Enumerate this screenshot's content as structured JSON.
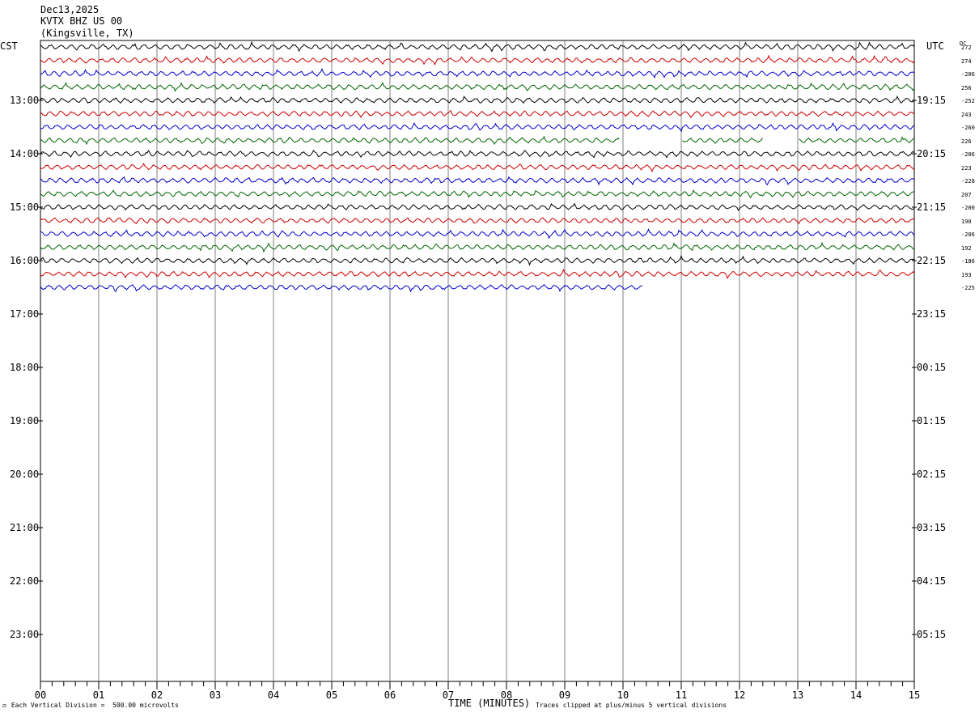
{
  "header": {
    "date": "Dec13,2025",
    "station": "KVTX BHZ US 00",
    "location": "(Kingsville, TX)"
  },
  "left_tz": "CST",
  "right_tz": "UTC",
  "dc_label": "DC",
  "footer": {
    "division": "Each Vertical Division =  500.00 microvolts",
    "xlabel": "TIME (MINUTES)",
    "clip_note": "Traces clipped at plus/minus 5 vertical divisions"
  },
  "chart_data": {
    "type": "line",
    "title": "KVTX BHZ US 00 (Kingsville, TX)",
    "xlabel": "TIME (MINUTES)",
    "ylabel": "",
    "xlim": [
      0,
      15
    ],
    "x_ticks": [
      "00",
      "01",
      "02",
      "03",
      "04",
      "05",
      "06",
      "07",
      "08",
      "09",
      "10",
      "11",
      "12",
      "13",
      "14",
      "15"
    ],
    "left_hour_labels": [
      "13:00",
      "14:00",
      "15:00",
      "16:00",
      "17:00",
      "18:00",
      "19:00",
      "20:00",
      "21:00",
      "22:00",
      "23:00"
    ],
    "right_hour_labels": [
      "19:15",
      "20:15",
      "21:15",
      "22:15",
      "23:15",
      "00:15",
      "01:15",
      "02:15",
      "03:15",
      "04:15",
      "05:15"
    ],
    "trace_colors": [
      "#000000",
      "#cc0000",
      "#0000cc",
      "#006600"
    ],
    "vertical_division_microvolts": 500.0,
    "clip_divisions": 5,
    "traces": [
      {
        "row": 0,
        "end_minute": 15,
        "gaps": [],
        "dc": "272"
      },
      {
        "row": 1,
        "end_minute": 15,
        "gaps": [],
        "dc": "274"
      },
      {
        "row": 2,
        "end_minute": 15,
        "gaps": [],
        "dc": "-206"
      },
      {
        "row": 3,
        "end_minute": 15,
        "gaps": [],
        "dc": "256"
      },
      {
        "row": 4,
        "end_minute": 15,
        "gaps": [],
        "dc": "-252"
      },
      {
        "row": 5,
        "end_minute": 15,
        "gaps": [],
        "dc": "243"
      },
      {
        "row": 6,
        "end_minute": 15,
        "gaps": [],
        "dc": "-260"
      },
      {
        "row": 7,
        "end_minute": 15,
        "gaps": [
          [
            9.95,
            11.0
          ],
          [
            12.4,
            13.0
          ]
        ],
        "dc": "226"
      },
      {
        "row": 8,
        "end_minute": 15,
        "gaps": [],
        "dc": "-206"
      },
      {
        "row": 9,
        "end_minute": 15,
        "gaps": [],
        "dc": "223"
      },
      {
        "row": 10,
        "end_minute": 15,
        "gaps": [],
        "dc": "-228"
      },
      {
        "row": 11,
        "end_minute": 15,
        "gaps": [],
        "dc": "207"
      },
      {
        "row": 12,
        "end_minute": 15,
        "gaps": [],
        "dc": "-200"
      },
      {
        "row": 13,
        "end_minute": 15,
        "gaps": [],
        "dc": "190"
      },
      {
        "row": 14,
        "end_minute": 15,
        "gaps": [],
        "dc": "-206"
      },
      {
        "row": 15,
        "end_minute": 15,
        "gaps": [],
        "dc": "192"
      },
      {
        "row": 16,
        "end_minute": 15,
        "gaps": [],
        "dc": "-186"
      },
      {
        "row": 17,
        "end_minute": 15,
        "gaps": [],
        "dc": "193"
      },
      {
        "row": 18,
        "end_minute": 10.35,
        "gaps": [],
        "dc": "-225"
      }
    ]
  }
}
